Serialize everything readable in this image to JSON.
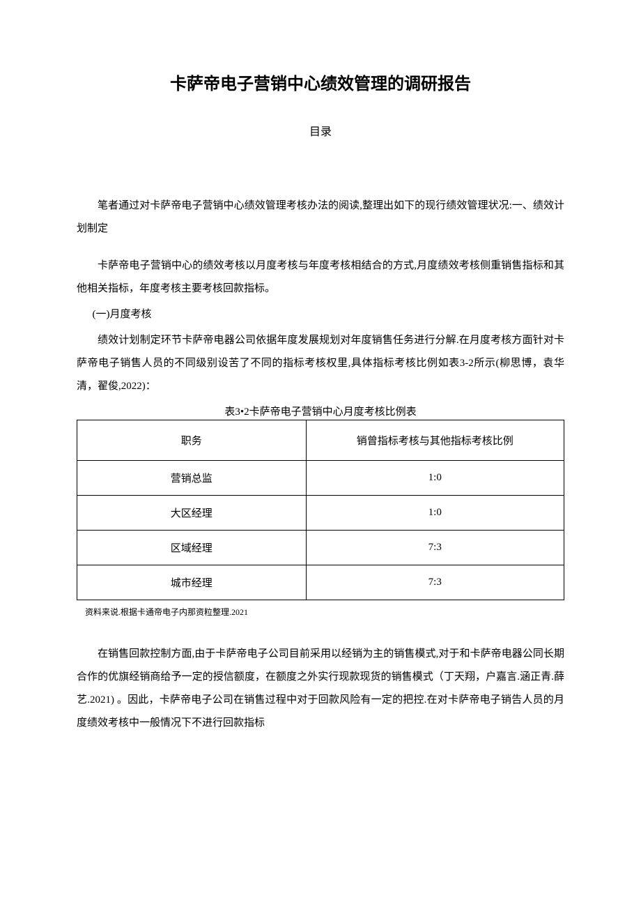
{
  "title": "卡萨帝电子营销中心绩效管理的调研报告",
  "toc_label": "目录",
  "para1": "笔者通过对卡萨帝电子营销中心绩效管理考核办法的阅读,整理出如下的现行绩效管理状况:一、绩效计划制定",
  "para2": "卡萨帝电子营销中心的绩效考核以月度考核与年度考核相结合的方式,月度绩效考核侧重销售指标和其他相关指标，年度考核主要考核回款指标。",
  "subsection_a": "(一)月度考核",
  "para3": "绩效计划制定环节卡萨帝电器公司依据年度发展规划对年度销售任务进行分解.在月度考核方面针对卡萨帝电子销售人员的不同级别设苦了不同的指标考核权里,具体指标考核比例如表3-2所示(柳思博，袁华清，翟俊,2022)：",
  "table_caption": "表3•2卡萨帝电子营销中心月度考核比例表",
  "table": {
    "header": {
      "col1": "职务",
      "col2": "销曾指标考核与其他指标考核比例"
    },
    "rows": [
      {
        "col1": "营销总监",
        "col2": "1:0"
      },
      {
        "col1": "大区经理",
        "col2": "1:0"
      },
      {
        "col1": "区域经理",
        "col2": "7:3"
      },
      {
        "col1": "城市经理",
        "col2": "7:3"
      }
    ]
  },
  "table_footnote": "资料来说.根据卡通帝电子内那资粒整理.2021",
  "para4": "在销售回款控制方面,由于卡萨帝电子公司目前采用以经销为主的销售模式,对于和卡萨帝电器公同长期合作的优旗经销商给予一定的授信额度，在额度之外实行现款现货的销售模式（丁天翔，户嘉言.涵正青.薛艺.2021)  。因此，卡萨帝电子公司在销售过程中对于回款风险有一定的把控.在对卡萨帝电子销告人员的月度绩效考核中一般情况下不进行回款指标"
}
